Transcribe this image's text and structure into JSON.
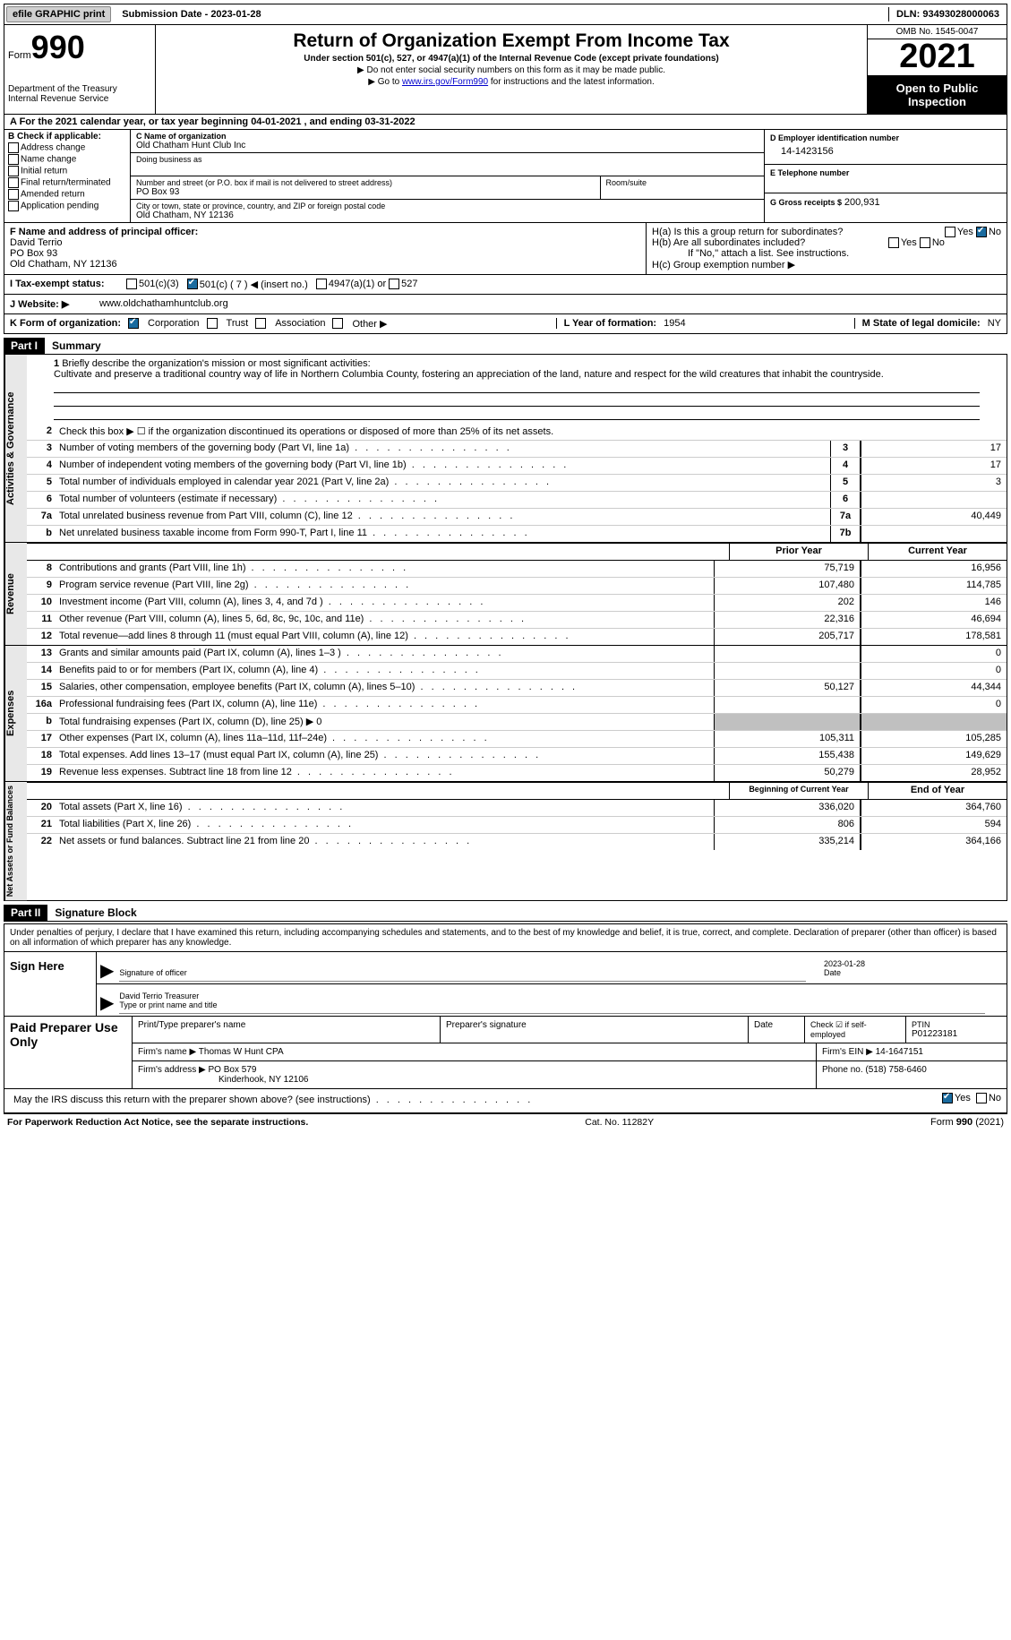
{
  "top_bar": {
    "efile_btn": "efile GRAPHIC print",
    "submission": "Submission Date - 2023-01-28",
    "dln": "DLN: 93493028000063"
  },
  "header": {
    "form_label": "Form",
    "form_number": "990",
    "dept": "Department of the Treasury",
    "irs": "Internal Revenue Service",
    "title": "Return of Organization Exempt From Income Tax",
    "subtitle": "Under section 501(c), 527, or 4947(a)(1) of the Internal Revenue Code (except private foundations)",
    "warn1": "▶ Do not enter social security numbers on this form as it may be made public.",
    "warn2_pre": "▶ Go to ",
    "warn2_link": "www.irs.gov/Form990",
    "warn2_post": " for instructions and the latest information.",
    "omb": "OMB No. 1545-0047",
    "year": "2021",
    "open": "Open to Public Inspection"
  },
  "row_a": "A For the 2021 calendar year, or tax year beginning 04-01-2021    , and ending 03-31-2022",
  "section_b": {
    "b_label": "B Check if applicable:",
    "checks": [
      "Address change",
      "Name change",
      "Initial return",
      "Final return/terminated",
      "Amended return",
      "Application pending"
    ],
    "c_label": "C Name of organization",
    "org_name": "Old Chatham Hunt Club Inc",
    "dba_label": "Doing business as",
    "addr_label": "Number and street (or P.O. box if mail is not delivered to street address)",
    "room_label": "Room/suite",
    "addr": "PO Box 93",
    "city_label": "City or town, state or province, country, and ZIP or foreign postal code",
    "city": "Old Chatham, NY  12136",
    "d_label": "D Employer identification number",
    "ein": "14-1423156",
    "e_label": "E Telephone number",
    "g_label": "G Gross receipts $",
    "gross": "200,931"
  },
  "section_f": {
    "f_label": "F Name and address of principal officer:",
    "officer_name": "David Terrio",
    "officer_addr1": "PO Box 93",
    "officer_addr2": "Old Chatham, NY  12136",
    "h_a": "H(a)  Is this a group return for subordinates?",
    "h_b": "H(b)  Are all subordinates included?",
    "h_note": "If \"No,\" attach a list. See instructions.",
    "h_c": "H(c)  Group exemption number ▶",
    "yes": "Yes",
    "no": "No"
  },
  "row_i": {
    "label": "I    Tax-exempt status:",
    "opts": [
      "501(c)(3)",
      "501(c) ( 7 ) ◀ (insert no.)",
      "4947(a)(1) or",
      "527"
    ]
  },
  "row_j": {
    "label": "J   Website: ▶",
    "value": "www.oldchathamhuntclub.org"
  },
  "row_k": {
    "label": "K Form of organization:",
    "opts": [
      "Corporation",
      "Trust",
      "Association",
      "Other ▶"
    ],
    "l_label": "L Year of formation:",
    "l_val": "1954",
    "m_label": "M State of legal domicile:",
    "m_val": "NY"
  },
  "part1": {
    "header": "Part I",
    "title": "Summary",
    "line1_label": "Briefly describe the organization's mission or most significant activities:",
    "mission": "Cultivate and preserve a traditional country way of life in Northern Columbia County, fostering an appreciation of the land, nature and respect for the wild creatures that inhabit the countryside.",
    "line2": "Check this box ▶ ☐  if the organization discontinued its operations or disposed of more than 25% of its net assets.",
    "side_labels": {
      "gov": "Activities & Governance",
      "rev": "Revenue",
      "exp": "Expenses",
      "net": "Net Assets or Fund Balances"
    },
    "gov_rows": [
      {
        "n": "3",
        "d": "Number of voting members of the governing body (Part VI, line 1a)",
        "box": "3",
        "v": "17"
      },
      {
        "n": "4",
        "d": "Number of independent voting members of the governing body (Part VI, line 1b)",
        "box": "4",
        "v": "17"
      },
      {
        "n": "5",
        "d": "Total number of individuals employed in calendar year 2021 (Part V, line 2a)",
        "box": "5",
        "v": "3"
      },
      {
        "n": "6",
        "d": "Total number of volunteers (estimate if necessary)",
        "box": "6",
        "v": ""
      },
      {
        "n": "7a",
        "d": "Total unrelated business revenue from Part VIII, column (C), line 12",
        "box": "7a",
        "v": "40,449"
      },
      {
        "n": "b",
        "d": "Net unrelated business taxable income from Form 990-T, Part I, line 11",
        "box": "7b",
        "v": ""
      }
    ],
    "col_prior": "Prior Year",
    "col_current": "Current Year",
    "rev_rows": [
      {
        "n": "8",
        "d": "Contributions and grants (Part VIII, line 1h)",
        "p": "75,719",
        "c": "16,956"
      },
      {
        "n": "9",
        "d": "Program service revenue (Part VIII, line 2g)",
        "p": "107,480",
        "c": "114,785"
      },
      {
        "n": "10",
        "d": "Investment income (Part VIII, column (A), lines 3, 4, and 7d )",
        "p": "202",
        "c": "146"
      },
      {
        "n": "11",
        "d": "Other revenue (Part VIII, column (A), lines 5, 6d, 8c, 9c, 10c, and 11e)",
        "p": "22,316",
        "c": "46,694"
      },
      {
        "n": "12",
        "d": "Total revenue—add lines 8 through 11 (must equal Part VIII, column (A), line 12)",
        "p": "205,717",
        "c": "178,581"
      }
    ],
    "exp_rows": [
      {
        "n": "13",
        "d": "Grants and similar amounts paid (Part IX, column (A), lines 1–3 )",
        "p": "",
        "c": "0"
      },
      {
        "n": "14",
        "d": "Benefits paid to or for members (Part IX, column (A), line 4)",
        "p": "",
        "c": "0"
      },
      {
        "n": "15",
        "d": "Salaries, other compensation, employee benefits (Part IX, column (A), lines 5–10)",
        "p": "50,127",
        "c": "44,344"
      },
      {
        "n": "16a",
        "d": "Professional fundraising fees (Part IX, column (A), line 11e)",
        "p": "",
        "c": "0"
      },
      {
        "n": "b",
        "d": "Total fundraising expenses (Part IX, column (D), line 25) ▶ 0",
        "grey": true
      },
      {
        "n": "17",
        "d": "Other expenses (Part IX, column (A), lines 11a–11d, 11f–24e)",
        "p": "105,311",
        "c": "105,285"
      },
      {
        "n": "18",
        "d": "Total expenses. Add lines 13–17 (must equal Part IX, column (A), line 25)",
        "p": "155,438",
        "c": "149,629"
      },
      {
        "n": "19",
        "d": "Revenue less expenses. Subtract line 18 from line 12",
        "p": "50,279",
        "c": "28,952"
      }
    ],
    "net_hdr_prior": "Beginning of Current Year",
    "net_hdr_curr": "End of Year",
    "net_rows": [
      {
        "n": "20",
        "d": "Total assets (Part X, line 16)",
        "p": "336,020",
        "c": "364,760"
      },
      {
        "n": "21",
        "d": "Total liabilities (Part X, line 26)",
        "p": "806",
        "c": "594"
      },
      {
        "n": "22",
        "d": "Net assets or fund balances. Subtract line 21 from line 20",
        "p": "335,214",
        "c": "364,166"
      }
    ]
  },
  "part2": {
    "header": "Part II",
    "title": "Signature Block",
    "disclaimer": "Under penalties of perjury, I declare that I have examined this return, including accompanying schedules and statements, and to the best of my knowledge and belief, it is true, correct, and complete. Declaration of preparer (other than officer) is based on all information of which preparer has any knowledge.",
    "sign_here": "Sign Here",
    "sig_officer": "Signature of officer",
    "sig_date_lbl": "Date",
    "sig_date": "2023-01-28",
    "officer_name": "David Terrio  Treasurer",
    "type_name": "Type or print name and title",
    "paid_prep": "Paid Preparer Use Only",
    "prep_name_lbl": "Print/Type preparer's name",
    "prep_sig_lbl": "Preparer's signature",
    "date_lbl": "Date",
    "check_self": "Check ☑ if self-employed",
    "ptin_lbl": "PTIN",
    "ptin": "P01223181",
    "firm_name_lbl": "Firm's name    ▶",
    "firm_name": "Thomas W Hunt CPA",
    "firm_ein_lbl": "Firm's EIN ▶",
    "firm_ein": "14-1647151",
    "firm_addr_lbl": "Firm's address ▶",
    "firm_addr": "PO Box 579",
    "firm_city": "Kinderhook, NY  12106",
    "phone_lbl": "Phone no.",
    "phone": "(518) 758-6460",
    "discuss": "May the IRS discuss this return with the preparer shown above? (see instructions)"
  },
  "footer": {
    "left": "For Paperwork Reduction Act Notice, see the separate instructions.",
    "mid": "Cat. No. 11282Y",
    "right": "Form 990 (2021)"
  }
}
